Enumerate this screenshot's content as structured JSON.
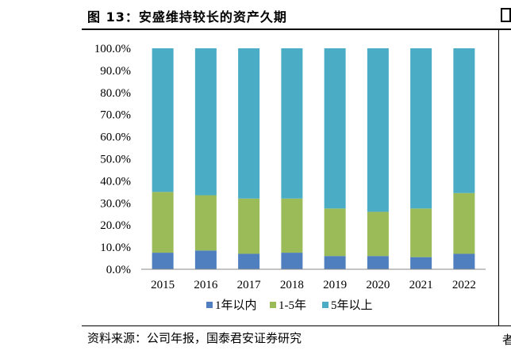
{
  "figure": {
    "title": "图 13：安盛维持较长的资产久期",
    "source": "资料来源：公司年报，国泰君安证券研究",
    "right_fragment": "者"
  },
  "colors": {
    "1年以内": "#4f7fbf",
    "1-5年": "#9bbb59",
    "5年以上": "#4bacc6"
  },
  "chart_data": {
    "type": "bar",
    "stacked": true,
    "categories": [
      "2015",
      "2016",
      "2017",
      "2018",
      "2019",
      "2020",
      "2021",
      "2022"
    ],
    "series": [
      {
        "name": "1年以内",
        "values": [
          7.5,
          8.5,
          7.0,
          7.5,
          6.0,
          6.0,
          5.5,
          7.0
        ]
      },
      {
        "name": "1-5年",
        "values": [
          27.5,
          25.0,
          25.0,
          24.5,
          21.5,
          20.0,
          22.0,
          27.5
        ]
      },
      {
        "name": "5年以上",
        "values": [
          65.0,
          66.5,
          68.0,
          68.0,
          72.5,
          74.0,
          72.5,
          65.5
        ]
      }
    ],
    "ylim": [
      0,
      100
    ],
    "yticks": [
      "0.0%",
      "10.0%",
      "20.0%",
      "30.0%",
      "40.0%",
      "50.0%",
      "60.0%",
      "70.0%",
      "80.0%",
      "90.0%",
      "100.0%"
    ],
    "legend_position": "bottom",
    "grid": false
  }
}
